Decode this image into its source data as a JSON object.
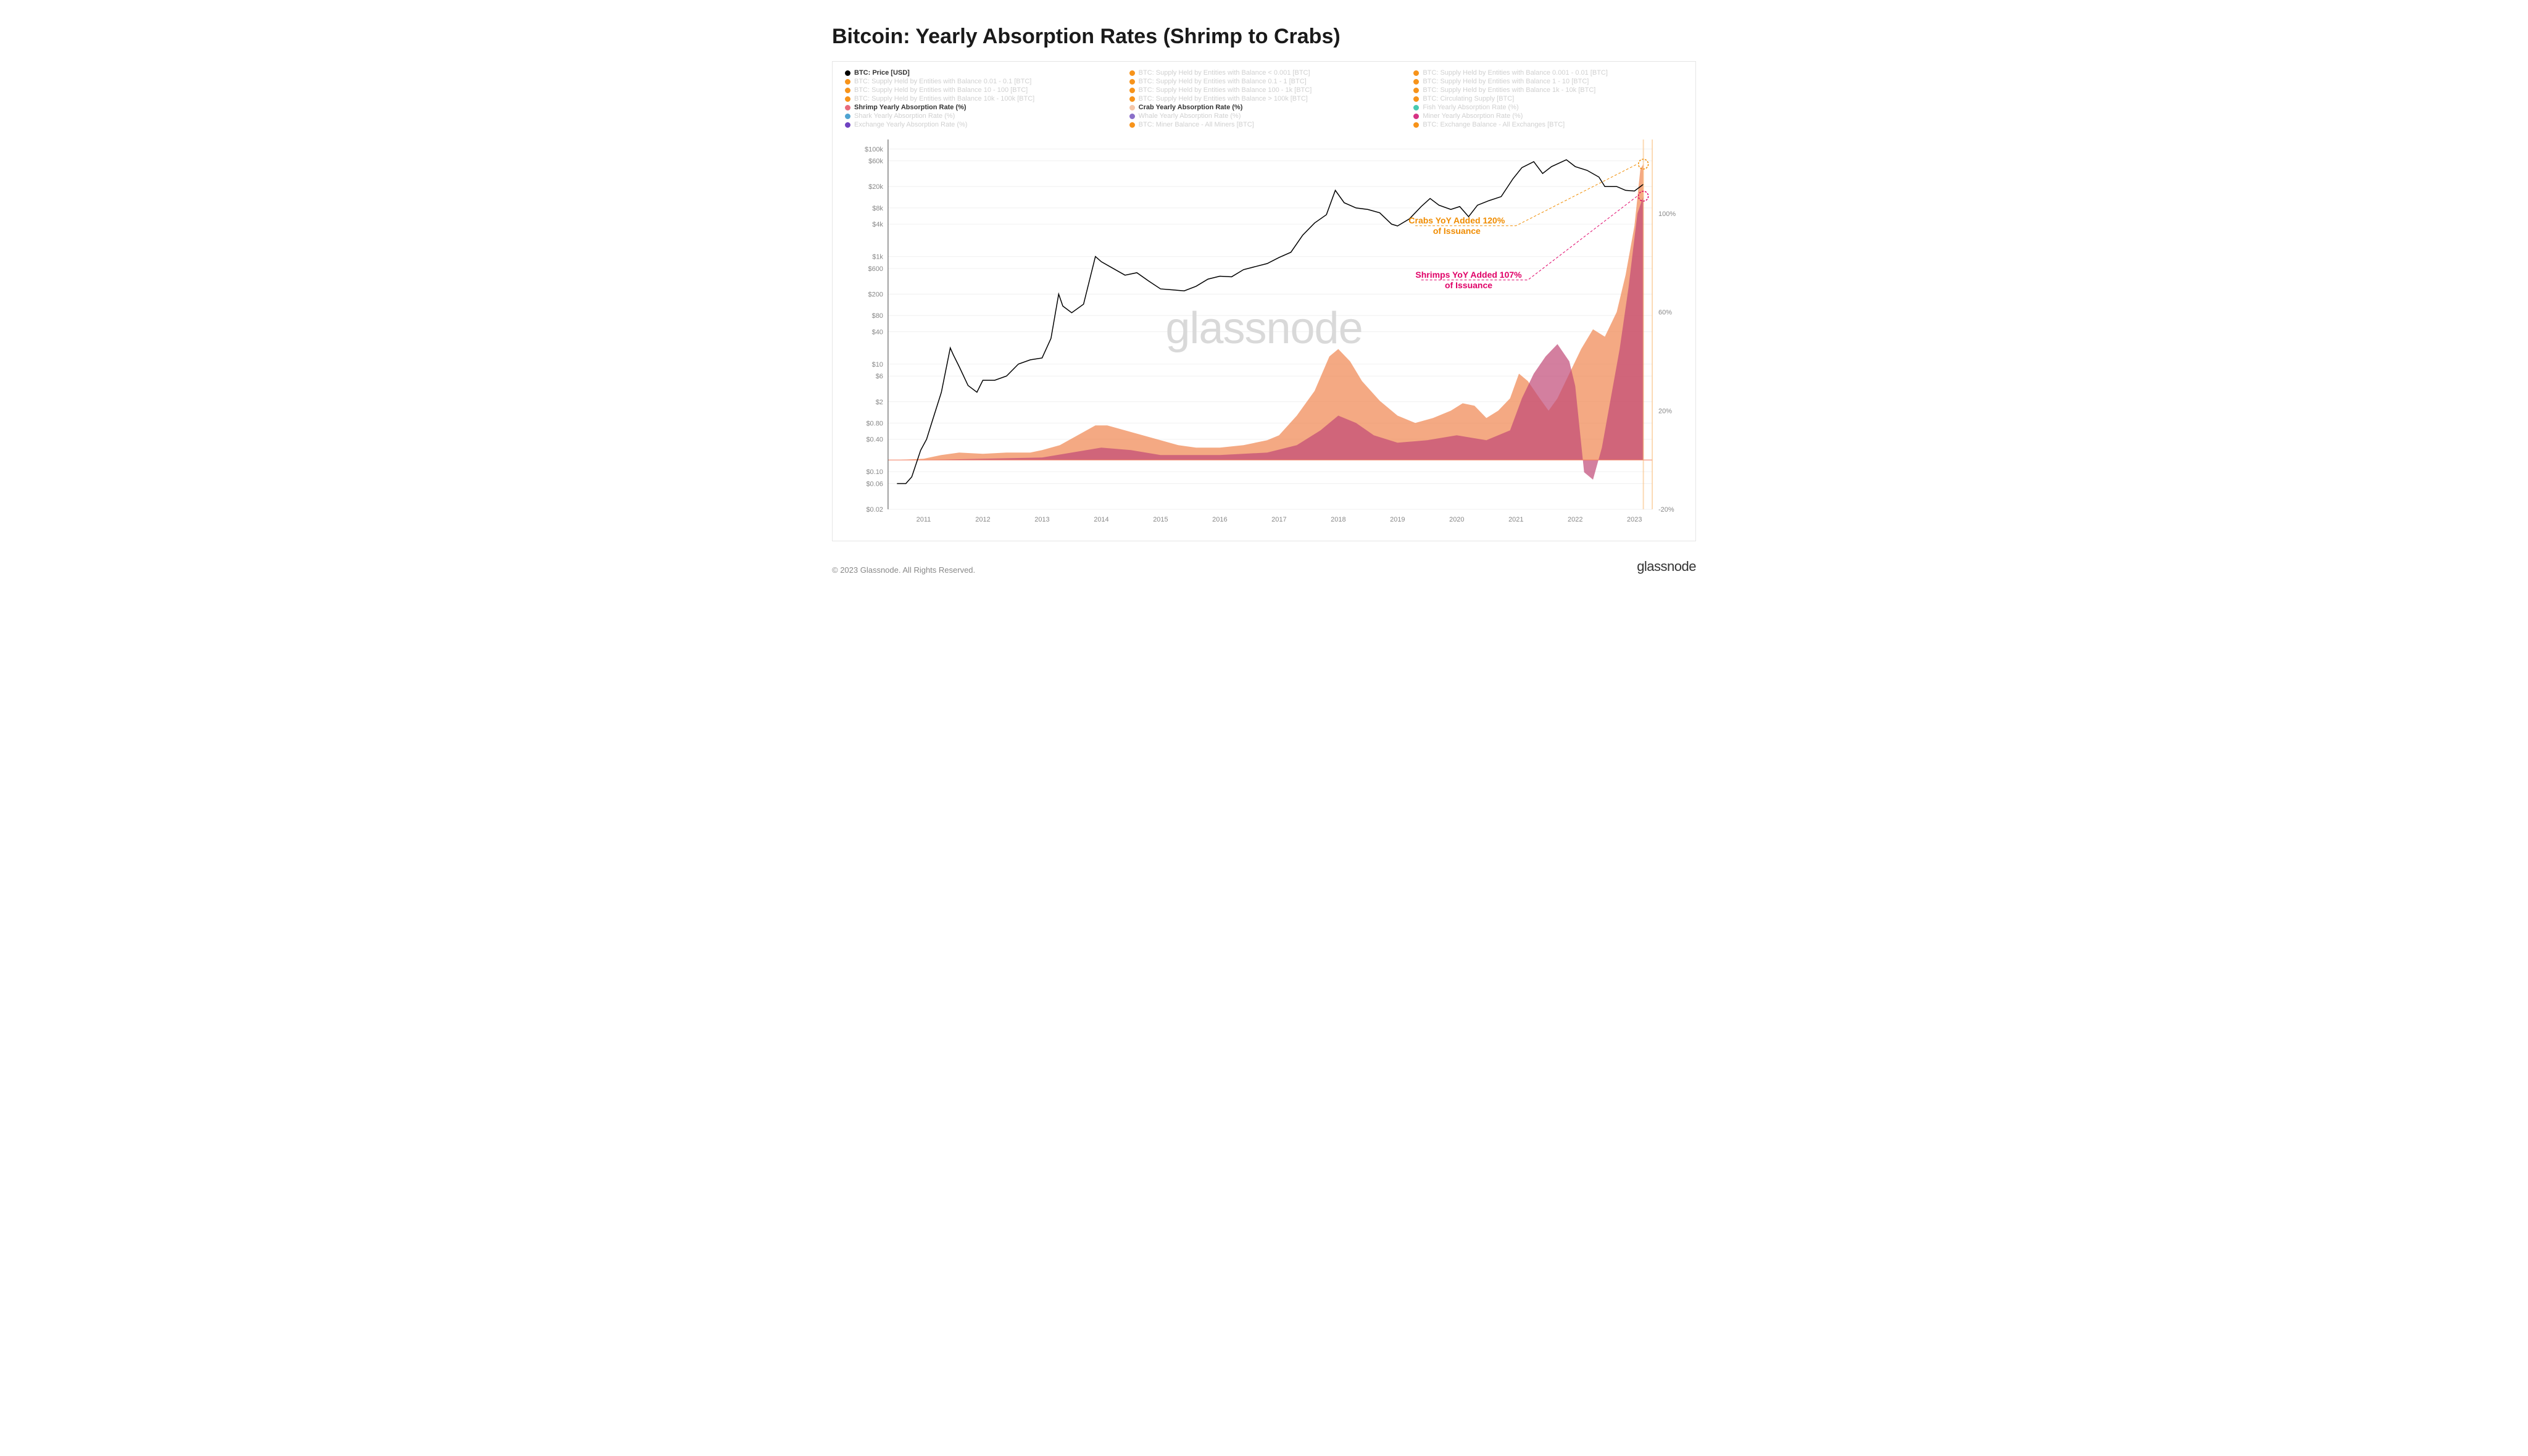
{
  "title": "Bitcoin: Yearly Absorption Rates (Shrimp to Crabs)",
  "watermark": "glassnode",
  "copyright": "© 2023 Glassnode. All Rights Reserved.",
  "brand": "glassnode",
  "annotations": {
    "crabs": {
      "text1": "Crabs YoY Added 120%",
      "text2": "of Issuance",
      "color": "#f08c00"
    },
    "shrimps": {
      "text1": "Shrimps YoY Added 107%",
      "text2": "of Issuance",
      "color": "#e00067"
    }
  },
  "legend": [
    {
      "label": "BTC: Price [USD]",
      "color": "#000000",
      "active": true
    },
    {
      "label": "BTC: Supply Held by Entities with Balance < 0.001 [BTC]",
      "color": "#f7931a",
      "active": false
    },
    {
      "label": "BTC: Supply Held by Entities with Balance 0.001 - 0.01 [BTC]",
      "color": "#f7931a",
      "active": false
    },
    {
      "label": "BTC: Supply Held by Entities with Balance 0.01 - 0.1 [BTC]",
      "color": "#f7931a",
      "active": false
    },
    {
      "label": "BTC: Supply Held by Entities with Balance 0.1 - 1 [BTC]",
      "color": "#f7931a",
      "active": false
    },
    {
      "label": "BTC: Supply Held by Entities with Balance 1 - 10 [BTC]",
      "color": "#f7931a",
      "active": false
    },
    {
      "label": "BTC: Supply Held by Entities with Balance 10 - 100 [BTC]",
      "color": "#f7931a",
      "active": false
    },
    {
      "label": "BTC: Supply Held by Entities with Balance 100 - 1k [BTC]",
      "color": "#f7931a",
      "active": false
    },
    {
      "label": "BTC: Supply Held by Entities with Balance 1k - 10k [BTC]",
      "color": "#f7931a",
      "active": false
    },
    {
      "label": "BTC: Supply Held by Entities with Balance 10k - 100k [BTC]",
      "color": "#f7931a",
      "active": false
    },
    {
      "label": "BTC: Supply Held by Entities with Balance > 100k [BTC]",
      "color": "#f7931a",
      "active": false
    },
    {
      "label": "BTC: Circulating Supply [BTC]",
      "color": "#f7931a",
      "active": false
    },
    {
      "label": "Shrimp Yearly Absorption Rate (%)",
      "color": "#e86a7b",
      "active": true
    },
    {
      "label": "Crab Yearly Absorption Rate (%)",
      "color": "#f5c6a8",
      "active": true
    },
    {
      "label": "Fish Yearly Absorption Rate (%)",
      "color": "#47c9b0",
      "active": false
    },
    {
      "label": "Shark Yearly Absorption Rate (%)",
      "color": "#4fa3d1",
      "active": false
    },
    {
      "label": "Whale Yearly Absorption Rate (%)",
      "color": "#8a6fc9",
      "active": false
    },
    {
      "label": "Miner Yearly Absorption Rate (%)",
      "color": "#d63384",
      "active": false
    },
    {
      "label": "Exchange Yearly Absorption Rate (%)",
      "color": "#6f42c1",
      "active": false
    },
    {
      "label": "BTC: Miner Balance - All Miners [BTC]",
      "color": "#f7931a",
      "active": false
    },
    {
      "label": "BTC: Exchange Balance - All Exchanges [BTC]",
      "color": "#f7931a",
      "active": false
    }
  ],
  "chart": {
    "type": "combo-line-area",
    "background_color": "#ffffff",
    "grid_color": "#f0f0f0",
    "axis_color": "#444444",
    "tick_font_size": 11,
    "tick_color": "#888888",
    "x": {
      "min": 2010.4,
      "max": 2023.3,
      "ticks": [
        2011,
        2012,
        2013,
        2014,
        2015,
        2016,
        2017,
        2018,
        2019,
        2020,
        2021,
        2022,
        2023
      ]
    },
    "y_left": {
      "scale": "log",
      "min": 0.02,
      "max": 150000,
      "label_prefix": "$",
      "ticks": [
        0.02,
        0.06,
        0.1,
        0.4,
        0.8,
        2,
        6,
        10,
        40,
        80,
        200,
        600,
        1000,
        4000,
        8000,
        20000,
        60000,
        100000
      ],
      "labels": [
        "$0.02",
        "$0.06",
        "$0.10",
        "$0.40",
        "$0.80",
        "$2",
        "$6",
        "$10",
        "$40",
        "$80",
        "$200",
        "$600",
        "$1k",
        "$4k",
        "$8k",
        "$20k",
        "$60k",
        "$100k"
      ]
    },
    "y_right": {
      "scale": "linear",
      "min": -20,
      "max": 130,
      "ticks": [
        -20,
        20,
        60,
        100
      ],
      "labels": [
        "-20%",
        "20%",
        "60%",
        "100%"
      ]
    },
    "series": {
      "price": {
        "color": "#000000",
        "width": 1.5,
        "axis": "left",
        "points": [
          [
            2010.55,
            0.06
          ],
          [
            2010.7,
            0.06
          ],
          [
            2010.8,
            0.08
          ],
          [
            2010.95,
            0.25
          ],
          [
            2011.05,
            0.4
          ],
          [
            2011.15,
            0.9
          ],
          [
            2011.3,
            3
          ],
          [
            2011.45,
            20
          ],
          [
            2011.5,
            15
          ],
          [
            2011.6,
            9
          ],
          [
            2011.75,
            4
          ],
          [
            2011.9,
            3
          ],
          [
            2012.0,
            5
          ],
          [
            2012.2,
            5
          ],
          [
            2012.4,
            6
          ],
          [
            2012.6,
            10
          ],
          [
            2012.8,
            12
          ],
          [
            2013.0,
            13
          ],
          [
            2013.15,
            30
          ],
          [
            2013.28,
            200
          ],
          [
            2013.35,
            120
          ],
          [
            2013.5,
            90
          ],
          [
            2013.7,
            130
          ],
          [
            2013.9,
            1000
          ],
          [
            2014.0,
            800
          ],
          [
            2014.2,
            600
          ],
          [
            2014.4,
            450
          ],
          [
            2014.6,
            500
          ],
          [
            2014.8,
            350
          ],
          [
            2015.0,
            250
          ],
          [
            2015.2,
            240
          ],
          [
            2015.4,
            230
          ],
          [
            2015.6,
            280
          ],
          [
            2015.8,
            380
          ],
          [
            2016.0,
            430
          ],
          [
            2016.2,
            420
          ],
          [
            2016.4,
            570
          ],
          [
            2016.6,
            650
          ],
          [
            2016.8,
            740
          ],
          [
            2017.0,
            960
          ],
          [
            2017.2,
            1200
          ],
          [
            2017.4,
            2500
          ],
          [
            2017.6,
            4200
          ],
          [
            2017.8,
            6000
          ],
          [
            2017.95,
            17000
          ],
          [
            2018.1,
            10000
          ],
          [
            2018.3,
            8000
          ],
          [
            2018.5,
            7500
          ],
          [
            2018.7,
            6500
          ],
          [
            2018.9,
            4000
          ],
          [
            2019.0,
            3700
          ],
          [
            2019.2,
            5000
          ],
          [
            2019.4,
            8500
          ],
          [
            2019.55,
            12000
          ],
          [
            2019.7,
            9000
          ],
          [
            2019.9,
            7500
          ],
          [
            2020.05,
            8500
          ],
          [
            2020.2,
            5500
          ],
          [
            2020.35,
            9000
          ],
          [
            2020.55,
            11000
          ],
          [
            2020.75,
            13000
          ],
          [
            2020.95,
            28000
          ],
          [
            2021.1,
            45000
          ],
          [
            2021.3,
            58000
          ],
          [
            2021.45,
            35000
          ],
          [
            2021.6,
            47000
          ],
          [
            2021.85,
            63000
          ],
          [
            2022.0,
            47000
          ],
          [
            2022.2,
            40000
          ],
          [
            2022.4,
            30000
          ],
          [
            2022.5,
            20000
          ],
          [
            2022.7,
            20000
          ],
          [
            2022.85,
            17000
          ],
          [
            2023.0,
            16500
          ],
          [
            2023.15,
            22000
          ]
        ]
      },
      "crab": {
        "fill_color": "#f08c5a",
        "fill_opacity": 0.75,
        "axis": "right",
        "points": [
          [
            2010.55,
            0
          ],
          [
            2011.0,
            0.5
          ],
          [
            2011.3,
            2
          ],
          [
            2011.6,
            3
          ],
          [
            2012.0,
            2.5
          ],
          [
            2012.4,
            3
          ],
          [
            2012.8,
            3
          ],
          [
            2013.0,
            4
          ],
          [
            2013.3,
            6
          ],
          [
            2013.6,
            10
          ],
          [
            2013.9,
            14
          ],
          [
            2014.1,
            14
          ],
          [
            2014.4,
            12
          ],
          [
            2014.7,
            10
          ],
          [
            2015.0,
            8
          ],
          [
            2015.3,
            6
          ],
          [
            2015.6,
            5
          ],
          [
            2016.0,
            5
          ],
          [
            2016.4,
            6
          ],
          [
            2016.8,
            8
          ],
          [
            2017.0,
            10
          ],
          [
            2017.3,
            18
          ],
          [
            2017.6,
            28
          ],
          [
            2017.85,
            42
          ],
          [
            2018.0,
            45
          ],
          [
            2018.2,
            40
          ],
          [
            2018.4,
            32
          ],
          [
            2018.7,
            24
          ],
          [
            2019.0,
            18
          ],
          [
            2019.3,
            15
          ],
          [
            2019.6,
            17
          ],
          [
            2019.9,
            20
          ],
          [
            2020.1,
            23
          ],
          [
            2020.3,
            22
          ],
          [
            2020.5,
            17
          ],
          [
            2020.7,
            20
          ],
          [
            2020.9,
            25
          ],
          [
            2021.05,
            35
          ],
          [
            2021.2,
            32
          ],
          [
            2021.4,
            25
          ],
          [
            2021.55,
            20
          ],
          [
            2021.7,
            25
          ],
          [
            2021.9,
            35
          ],
          [
            2022.1,
            45
          ],
          [
            2022.3,
            53
          ],
          [
            2022.5,
            50
          ],
          [
            2022.7,
            60
          ],
          [
            2022.85,
            75
          ],
          [
            2023.0,
            95
          ],
          [
            2023.1,
            118
          ],
          [
            2023.15,
            120
          ]
        ]
      },
      "shrimp": {
        "fill_color": "#c14876",
        "fill_opacity": 0.7,
        "axis": "right",
        "points": [
          [
            2010.55,
            0
          ],
          [
            2011.0,
            0
          ],
          [
            2012.0,
            0.5
          ],
          [
            2013.0,
            1
          ],
          [
            2013.5,
            3
          ],
          [
            2014.0,
            5
          ],
          [
            2014.5,
            4
          ],
          [
            2015.0,
            2
          ],
          [
            2016.0,
            2
          ],
          [
            2016.8,
            3
          ],
          [
            2017.3,
            6
          ],
          [
            2017.7,
            12
          ],
          [
            2018.0,
            18
          ],
          [
            2018.3,
            15
          ],
          [
            2018.6,
            10
          ],
          [
            2019.0,
            7
          ],
          [
            2019.5,
            8
          ],
          [
            2020.0,
            10
          ],
          [
            2020.5,
            8
          ],
          [
            2020.9,
            12
          ],
          [
            2021.1,
            25
          ],
          [
            2021.3,
            35
          ],
          [
            2021.5,
            42
          ],
          [
            2021.7,
            47
          ],
          [
            2021.9,
            40
          ],
          [
            2022.0,
            30
          ],
          [
            2022.15,
            -5
          ],
          [
            2022.3,
            -8
          ],
          [
            2022.45,
            5
          ],
          [
            2022.6,
            25
          ],
          [
            2022.75,
            45
          ],
          [
            2022.9,
            70
          ],
          [
            2023.05,
            100
          ],
          [
            2023.15,
            107
          ]
        ]
      }
    },
    "end_markers": [
      {
        "x": 2023.15,
        "y": 120,
        "axis": "right",
        "stroke": "#f08c00"
      },
      {
        "x": 2023.15,
        "y": 107,
        "axis": "right",
        "stroke": "#e00067"
      }
    ],
    "zero_line": {
      "color": "#f47b5d",
      "width": 1,
      "axis": "right",
      "y": 0
    }
  }
}
